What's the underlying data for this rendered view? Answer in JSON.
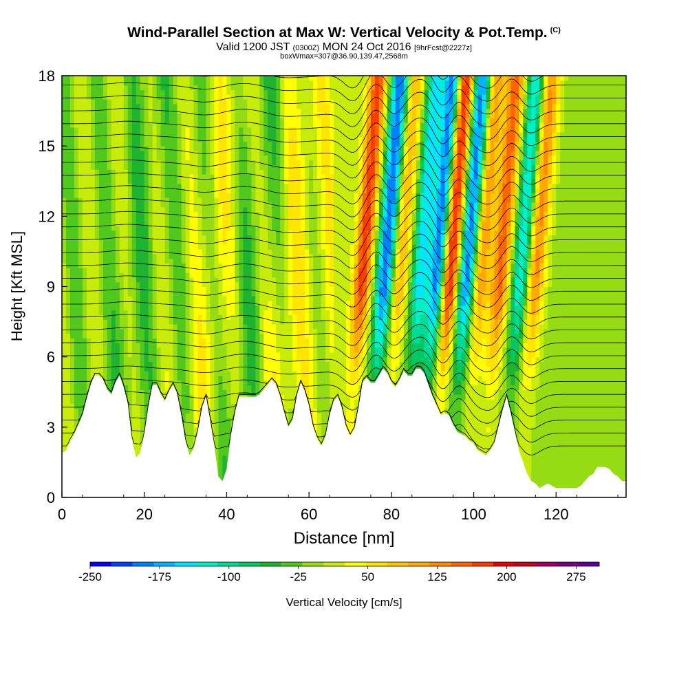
{
  "title": {
    "main": "Wind-Parallel Section at Max W: Vertical Velocity & Pot.Temp.",
    "copyright": "(C)",
    "valid_prefix": "Valid 1200 JST",
    "valid_utc": "(0300Z)",
    "valid_date": "MON 24 Oct 2016",
    "forecast": "[9hrFcst@2227z]",
    "box_info": "boxWmax=307@36.90,139.47,2568m"
  },
  "chart_data": {
    "type": "heatmap",
    "xlabel": "Distance [nm]",
    "ylabel": "Height [Kft MSL]",
    "xlim": [
      0,
      137
    ],
    "ylim": [
      0,
      18
    ],
    "x_ticks": [
      "0",
      "20",
      "40",
      "60",
      "80",
      "100",
      "120"
    ],
    "y_ticks": [
      "0",
      "3",
      "6",
      "9",
      "12",
      "15",
      "18"
    ],
    "colorbar": {
      "label": "Vertical Velocity [cm/s]",
      "tick_labels": [
        "-250",
        "-175",
        "-100",
        "-25",
        "50",
        "125",
        "200",
        "275"
      ],
      "min": -250,
      "max": 300,
      "step": 25,
      "colors": [
        "#0000ff",
        "#0040ff",
        "#0080ff",
        "#00b4ff",
        "#00e6ff",
        "#00f0c8",
        "#00dc96",
        "#00c864",
        "#1eb432",
        "#50c81e",
        "#96dc14",
        "#c8ec0a",
        "#ffff00",
        "#ffe600",
        "#ffc800",
        "#ffaa00",
        "#ff8c00",
        "#ff6400",
        "#ff3c00",
        "#e6000a",
        "#c8001e",
        "#a0005a",
        "#780078",
        "#5a0096"
      ]
    },
    "terrain_kft": [
      [
        0,
        1.9
      ],
      [
        1,
        2.0
      ],
      [
        2,
        2.4
      ],
      [
        3,
        2.7
      ],
      [
        4,
        3.1
      ],
      [
        5,
        3.5
      ],
      [
        6,
        4.2
      ],
      [
        7,
        4.8
      ],
      [
        8,
        5.2
      ],
      [
        9,
        5.2
      ],
      [
        10,
        5.0
      ],
      [
        11,
        4.6
      ],
      [
        12,
        4.4
      ],
      [
        13,
        4.9
      ],
      [
        14,
        5.2
      ],
      [
        15,
        4.7
      ],
      [
        16,
        4.0
      ],
      [
        17,
        2.5
      ],
      [
        18,
        1.7
      ],
      [
        19,
        1.9
      ],
      [
        20,
        2.7
      ],
      [
        21,
        3.9
      ],
      [
        22,
        4.8
      ],
      [
        23,
        4.8
      ],
      [
        24,
        4.4
      ],
      [
        25,
        4.1
      ],
      [
        26,
        4.5
      ],
      [
        27,
        4.8
      ],
      [
        28,
        4.4
      ],
      [
        29,
        3.5
      ],
      [
        30,
        2.4
      ],
      [
        31,
        1.8
      ],
      [
        32,
        2.1
      ],
      [
        33,
        2.8
      ],
      [
        34,
        3.8
      ],
      [
        35,
        4.3
      ],
      [
        36,
        3.3
      ],
      [
        37,
        2.2
      ],
      [
        38,
        0.9
      ],
      [
        39,
        0.7
      ],
      [
        40,
        1.2
      ],
      [
        41,
        2.6
      ],
      [
        42,
        3.6
      ],
      [
        43,
        4.3
      ],
      [
        44,
        4.3
      ],
      [
        45,
        4.3
      ],
      [
        46,
        4.3
      ],
      [
        47,
        4.3
      ],
      [
        48,
        4.4
      ],
      [
        49,
        4.6
      ],
      [
        50,
        4.8
      ],
      [
        51,
        5.0
      ],
      [
        52,
        4.8
      ],
      [
        53,
        4.3
      ],
      [
        54,
        3.6
      ],
      [
        55,
        3.0
      ],
      [
        56,
        3.3
      ],
      [
        57,
        4.3
      ],
      [
        58,
        4.9
      ],
      [
        59,
        4.5
      ],
      [
        60,
        3.9
      ],
      [
        61,
        3.0
      ],
      [
        62,
        2.5
      ],
      [
        63,
        2.2
      ],
      [
        64,
        2.6
      ],
      [
        65,
        3.5
      ],
      [
        66,
        4.1
      ],
      [
        67,
        4.3
      ],
      [
        68,
        3.8
      ],
      [
        69,
        3.0
      ],
      [
        70,
        2.6
      ],
      [
        71,
        2.9
      ],
      [
        72,
        3.8
      ],
      [
        73,
        4.9
      ],
      [
        74,
        5.1
      ],
      [
        75,
        4.9
      ],
      [
        76,
        4.9
      ],
      [
        77,
        5.2
      ],
      [
        78,
        5.5
      ],
      [
        79,
        5.3
      ],
      [
        80,
        4.9
      ],
      [
        81,
        4.7
      ],
      [
        82,
        5.0
      ],
      [
        83,
        5.4
      ],
      [
        84,
        5.2
      ],
      [
        85,
        5.2
      ],
      [
        86,
        5.5
      ],
      [
        87,
        5.5
      ],
      [
        88,
        5.3
      ],
      [
        89,
        4.8
      ],
      [
        90,
        4.3
      ],
      [
        91,
        3.9
      ],
      [
        92,
        3.5
      ],
      [
        93,
        3.6
      ],
      [
        94,
        3.5
      ],
      [
        95,
        3.1
      ],
      [
        96,
        2.8
      ],
      [
        97,
        2.7
      ],
      [
        98,
        2.6
      ],
      [
        99,
        2.4
      ],
      [
        100,
        2.3
      ],
      [
        101,
        2.0
      ],
      [
        102,
        1.9
      ],
      [
        103,
        1.8
      ],
      [
        104,
        2.0
      ],
      [
        105,
        2.3
      ],
      [
        106,
        3.0
      ],
      [
        107,
        3.7
      ],
      [
        108,
        4.3
      ],
      [
        109,
        3.6
      ],
      [
        110,
        2.8
      ],
      [
        111,
        2.0
      ],
      [
        112,
        1.5
      ],
      [
        113,
        1.0
      ],
      [
        114,
        0.7
      ],
      [
        115,
        0.6
      ],
      [
        116,
        0.4
      ],
      [
        117,
        0.5
      ],
      [
        118,
        0.6
      ],
      [
        119,
        0.5
      ],
      [
        120,
        0.4
      ],
      [
        121,
        0.4
      ],
      [
        122,
        0.4
      ],
      [
        123,
        0.4
      ],
      [
        124,
        0.4
      ],
      [
        125,
        0.4
      ],
      [
        126,
        0.5
      ],
      [
        127,
        0.7
      ],
      [
        128,
        0.9
      ],
      [
        129,
        1.0
      ],
      [
        130,
        1.3
      ],
      [
        131,
        1.3
      ],
      [
        132,
        1.3
      ],
      [
        133,
        1.2
      ],
      [
        134,
        1.0
      ],
      [
        135,
        0.9
      ],
      [
        136,
        0.7
      ],
      [
        137,
        0.7
      ]
    ],
    "w_features": [
      {
        "x": 71,
        "value": 200
      },
      {
        "x": 76.5,
        "value": -225
      },
      {
        "x": 80,
        "value": 125
      },
      {
        "x": 85,
        "value": -150
      },
      {
        "x": 89.5,
        "value": -250
      },
      {
        "x": 92,
        "value": 275
      },
      {
        "x": 96.5,
        "value": -225
      },
      {
        "x": 99.5,
        "value": 150
      },
      {
        "x": 104.5,
        "value": 175
      },
      {
        "x": 109.5,
        "value": -150
      },
      {
        "x": 113,
        "value": 150
      },
      {
        "x": 35,
        "value": 50
      },
      {
        "x": 54,
        "value": 60
      },
      {
        "x": 62,
        "value": 40
      },
      {
        "x": 16,
        "value": -30
      },
      {
        "x": 44,
        "value": -25
      }
    ]
  }
}
